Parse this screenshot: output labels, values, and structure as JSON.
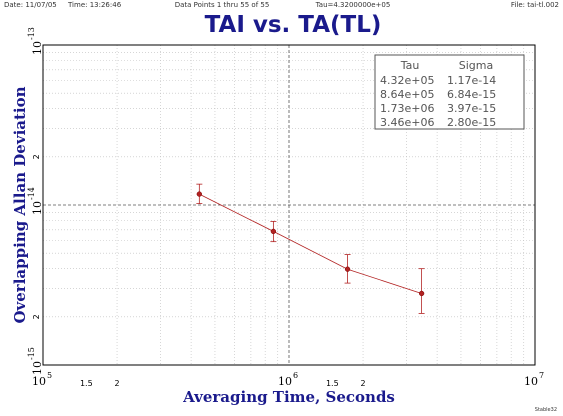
{
  "header": {
    "date": "Date: 11/07/05",
    "time": "Time: 13:26:46",
    "points": "Data Points 1 thru 55 of 55",
    "tau": "Tau=4.3200000e+05",
    "file": "File: tai-tl.002"
  },
  "footer": "Stable32",
  "colors": {
    "title": "#1a1a8c",
    "data": "#b22222",
    "grid": "#bdbdbd"
  },
  "chart_data": {
    "type": "scatter",
    "title": "TAI vs. TA(TL)",
    "xlabel": "Averaging Time, Seconds",
    "ylabel": "Overlapping Allan Deviation",
    "x_scale": "log",
    "y_scale": "log",
    "xlim": [
      100000,
      10000000
    ],
    "ylim": [
      1e-15,
      1e-13
    ],
    "grid": true,
    "x_ticks": [
      {
        "value": 100000,
        "base": "10",
        "exp": "5"
      },
      {
        "value": 1000000,
        "base": "10",
        "exp": "6"
      },
      {
        "value": 10000000,
        "base": "10",
        "exp": "7"
      }
    ],
    "x_minor_labels": [
      {
        "value": 150000,
        "label": "1.5"
      },
      {
        "value": 200000,
        "label": "2"
      },
      {
        "value": 1500000,
        "label": "1.5"
      },
      {
        "value": 2000000,
        "label": "2"
      }
    ],
    "y_ticks": [
      {
        "value": 1e-13,
        "base": "10",
        "exp": "-13"
      },
      {
        "value": 1e-14,
        "base": "10",
        "exp": "-14"
      },
      {
        "value": 1e-15,
        "base": "10",
        "exp": "-15"
      }
    ],
    "y_minor_labels": [
      {
        "value": 2e-14,
        "label": "2"
      },
      {
        "value": 2e-15,
        "label": "2"
      }
    ],
    "series": [
      {
        "x": [
          432000,
          864000,
          1730000,
          3460000
        ],
        "y": [
          1.17e-14,
          6.84e-15,
          3.97e-15,
          2.8e-15
        ],
        "err_low": [
          1.02e-14,
          5.9e-15,
          3.25e-15,
          2.1e-15
        ],
        "err_high": [
          1.35e-14,
          7.9e-15,
          4.9e-15,
          4e-15
        ]
      }
    ],
    "table": {
      "headers": [
        "Tau",
        "Sigma"
      ],
      "rows": [
        [
          "4.32e+05",
          "1.17e-14"
        ],
        [
          "8.64e+05",
          "6.84e-15"
        ],
        [
          "1.73e+06",
          "3.97e-15"
        ],
        [
          "3.46e+06",
          "2.80e-15"
        ]
      ]
    }
  }
}
